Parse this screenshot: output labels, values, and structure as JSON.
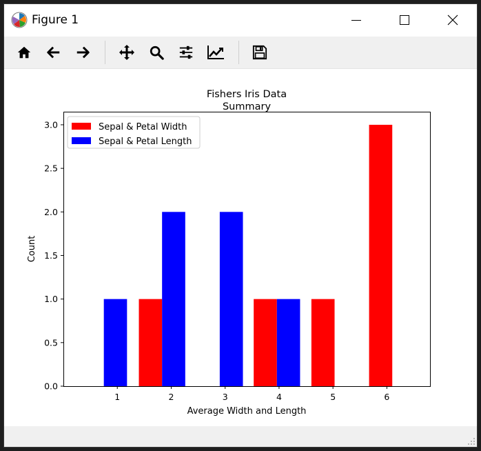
{
  "window": {
    "title": "Figure 1",
    "controls": [
      "minimize-icon",
      "maximize-icon",
      "close-icon"
    ]
  },
  "toolbar": {
    "tools": [
      "home-icon",
      "back-icon",
      "forward-icon",
      "pan-icon",
      "zoom-icon",
      "configure-subplots-icon",
      "edit-axis-icon",
      "save-icon"
    ]
  },
  "chart_data": {
    "type": "bar",
    "title": "Fishers Iris Data\nSummary",
    "xlabel": "Average Width and Length",
    "ylabel": "Count",
    "xlim": [
      0.0,
      6.8
    ],
    "ylim": [
      0.0,
      3.15
    ],
    "xticks": [
      "1",
      "2",
      "3",
      "4",
      "5",
      "6"
    ],
    "yticks": [
      "0.0",
      "0.5",
      "1.0",
      "1.5",
      "2.0",
      "2.5",
      "3.0"
    ],
    "grid": false,
    "legend_position": "top-left",
    "series": [
      {
        "name": "Sepal & Petal Width",
        "color": "#ff0000",
        "bars": [
          {
            "x0": 1.4,
            "x1": 1.83,
            "value": 1
          },
          {
            "x0": 3.53,
            "x1": 3.96,
            "value": 1
          },
          {
            "x0": 4.6,
            "x1": 5.03,
            "value": 1
          },
          {
            "x0": 5.67,
            "x1": 6.1,
            "value": 3
          }
        ]
      },
      {
        "name": "Sepal & Petal Length",
        "color": "#0000ff",
        "bars": [
          {
            "x0": 0.75,
            "x1": 1.18,
            "value": 1
          },
          {
            "x0": 1.83,
            "x1": 2.26,
            "value": 2
          },
          {
            "x0": 2.9,
            "x1": 3.33,
            "value": 2
          },
          {
            "x0": 3.96,
            "x1": 4.39,
            "value": 1
          }
        ]
      }
    ]
  }
}
